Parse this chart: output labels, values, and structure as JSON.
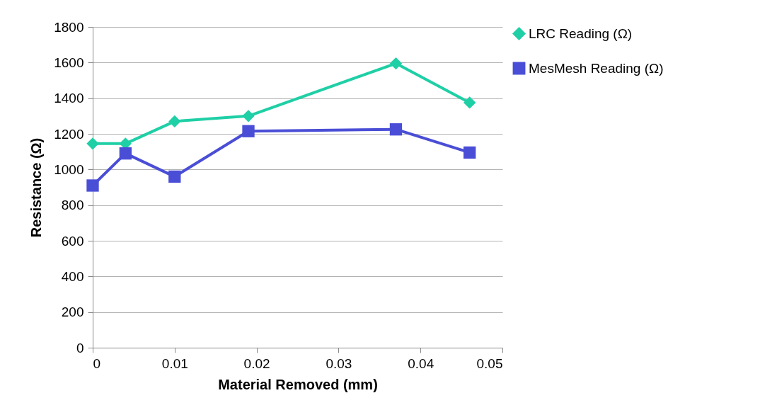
{
  "chart_data": {
    "type": "line",
    "xlabel": "Material Removed (mm)",
    "ylabel": "Resistance (Ω)",
    "xlim": [
      0,
      0.05
    ],
    "xticks": [
      0,
      0.01,
      0.02,
      0.03,
      0.04,
      0.05
    ],
    "ylim": [
      0,
      1800
    ],
    "yticks": [
      0,
      200,
      400,
      600,
      800,
      1000,
      1200,
      1400,
      1600,
      1800
    ],
    "x": [
      0,
      0.004,
      0.01,
      0.019,
      0.037,
      0.046
    ],
    "series": [
      {
        "name": "LRC Reading (Ω)",
        "color": "#1fcfa6",
        "marker": "diamond",
        "values": [
          1145,
          1145,
          1270,
          1300,
          1595,
          1375
        ]
      },
      {
        "name": "MesMesh Reading (Ω)",
        "color": "#4a4ed6",
        "marker": "square",
        "values": [
          910,
          1090,
          960,
          1215,
          1225,
          1095
        ]
      }
    ],
    "grid": "y",
    "legend": "right",
    "line_style": "solid"
  }
}
